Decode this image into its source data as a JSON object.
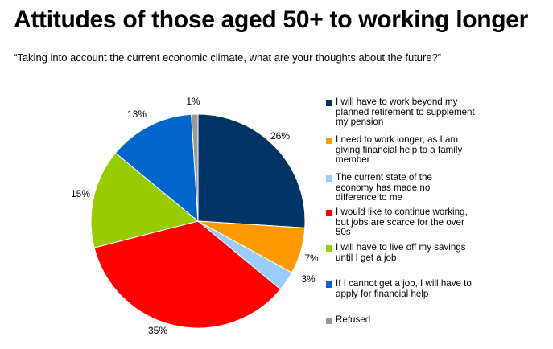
{
  "header": {
    "title": "Attitudes of those aged 50+ to working longer",
    "subtitle": "“Taking into account the current economic climate, what are your thoughts about the future?”"
  },
  "chart_data": {
    "type": "pie",
    "title": "Attitudes of those aged 50+ to working longer",
    "subtitle": "“Taking into account the current economic climate, what are your thoughts about the future?”",
    "legend_position": "right",
    "slices": [
      {
        "name": "I will have to work beyond my planned retirement to supplement my pension",
        "value": 26,
        "label": "26%",
        "color": "#003366"
      },
      {
        "name": "I need to work longer, as I am giving financial help to a family member",
        "value": 7,
        "label": "7%",
        "color": "#FF9900"
      },
      {
        "name": "The current state of the economy has made no difference to me",
        "value": 3,
        "label": "3%",
        "color": "#99CCFF"
      },
      {
        "name": "I would like to continue working, but jobs are scarce for the over 50s",
        "value": 35,
        "label": "35%",
        "color": "#FF0000"
      },
      {
        "name": "I will have to live off my savings until I get a job",
        "value": 15,
        "label": "15%",
        "color": "#99CC00"
      },
      {
        "name": "If I cannot get a job, I will have to apply for financial help",
        "value": 13,
        "label": "13%",
        "color": "#0066CC"
      },
      {
        "name": "Refused",
        "value": 1,
        "label": "1%",
        "color": "#999999"
      }
    ]
  }
}
